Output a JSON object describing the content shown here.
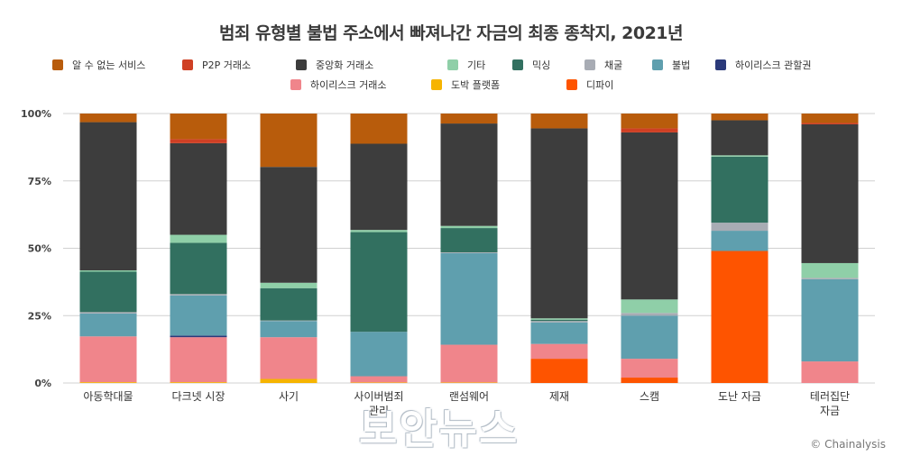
{
  "title": "범죄 유형별 불법 주소에서 빠져나간 자금의 최종 종착지, 2021년",
  "watermark": "보안뉴스",
  "credit": "© Chainalysis",
  "colors": {
    "알 수 없는 서비스": "#b85c0c",
    "P2P 거래소": "#cf4024",
    "중앙화 거래소": "#3d3d3d",
    "기타": "#8fcfa8",
    "믹싱": "#327060",
    "채굴": "#a8acb4",
    "불법": "#5f9fae",
    "하이리스크 관할권": "#2b3a7a",
    "하이리스크 거래소": "#f0858b",
    "도박 플랫폼": "#f6b400",
    "디파이": "#fe5400"
  },
  "chart_data": {
    "type": "bar",
    "stacked": true,
    "ylim": [
      0,
      100
    ],
    "y_ticks": [
      "0%",
      "25%",
      "50%",
      "75%",
      "100%"
    ],
    "grid": true,
    "legend_position": "top-left",
    "categories": [
      "아동학대물",
      "다크넷 시장",
      "사기",
      "사이버범죄 관리",
      "랜섬웨어",
      "제재",
      "스캠",
      "도난 자금",
      "테러집단 자금"
    ],
    "series": [
      {
        "name": "도박 플랫폼",
        "values": [
          0.3,
          0.3,
          1.5,
          0.2,
          0.2,
          0,
          0,
          0,
          0
        ]
      },
      {
        "name": "디파이",
        "values": [
          0,
          0,
          0,
          0,
          0,
          9,
          2,
          49,
          0
        ]
      },
      {
        "name": "하이리스크 거래소",
        "values": [
          17,
          16.7,
          15.5,
          2.3,
          14,
          5.5,
          7,
          0,
          8
        ]
      },
      {
        "name": "하이리스크 관할권",
        "values": [
          0,
          0.6,
          0,
          0,
          0,
          0,
          0,
          0,
          0
        ]
      },
      {
        "name": "불법",
        "values": [
          8.5,
          14.9,
          6,
          16.5,
          34,
          8,
          16,
          7.5,
          30.5
        ]
      },
      {
        "name": "채굴",
        "values": [
          0.5,
          0.5,
          0.2,
          0,
          0.3,
          0.5,
          1,
          3,
          0.5
        ]
      },
      {
        "name": "믹싱",
        "values": [
          15,
          19,
          12,
          37,
          9,
          0.5,
          0,
          24.5,
          0
        ]
      },
      {
        "name": "기타",
        "values": [
          0.5,
          3,
          2,
          0.8,
          0.8,
          0.5,
          5,
          0.5,
          5.5
        ]
      },
      {
        "name": "중앙화 거래소",
        "values": [
          55,
          34,
          43,
          32,
          38,
          70.5,
          62,
          13,
          51.5
        ]
      },
      {
        "name": "P2P 거래소",
        "values": [
          0,
          1.5,
          0,
          0,
          0,
          0,
          1.5,
          0,
          0.5
        ]
      },
      {
        "name": "알 수 없는 서비스",
        "values": [
          3.2,
          9.5,
          19.8,
          11.2,
          3.7,
          5.5,
          5.5,
          2.5,
          3.5
        ]
      }
    ]
  },
  "legend_order": [
    "알 수 없는 서비스",
    "P2P 거래소",
    "중앙화 거래소",
    "기타",
    "믹싱",
    "채굴",
    "불법",
    "하이리스크 관할권",
    "하이리스크 거래소",
    "도박 플랫폼",
    "디파이"
  ]
}
